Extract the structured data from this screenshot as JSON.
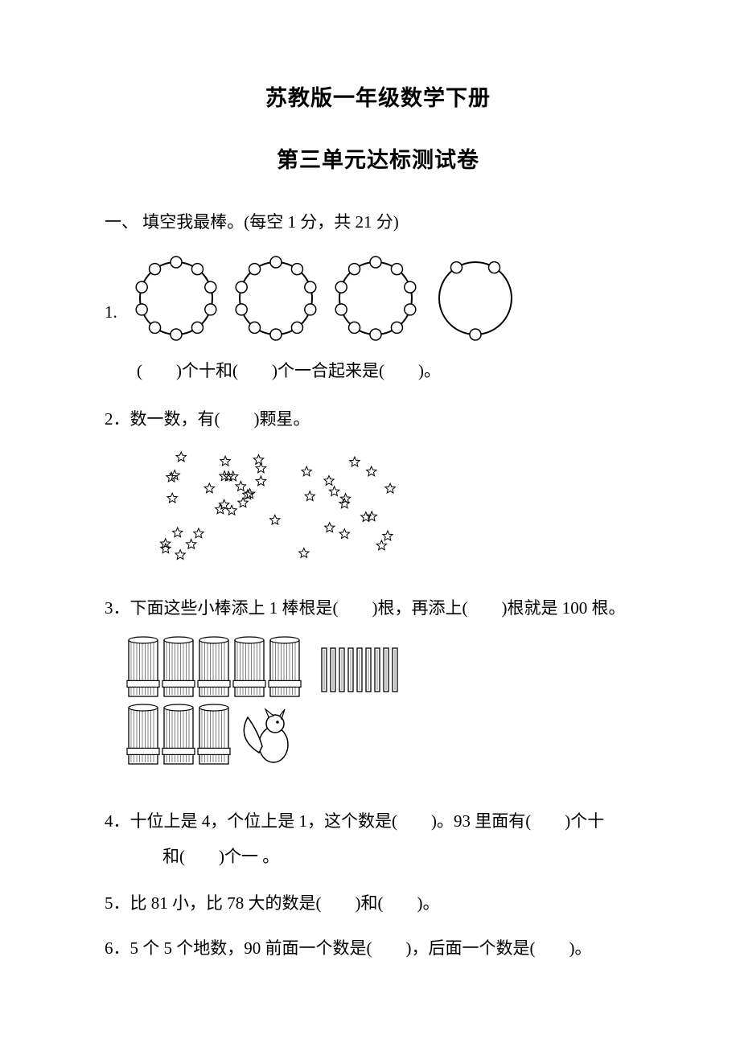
{
  "title": "苏教版一年级数学下册",
  "subtitle": "第三单元达标测试卷",
  "section1": {
    "heading": "一、 填空我最棒。(每空 1 分，共 21 分)",
    "q1": {
      "num": "1.",
      "rings": [
        {
          "beads": 10
        },
        {
          "beads": 10
        },
        {
          "beads": 10
        },
        {
          "beads": 3
        }
      ],
      "text": "(　　)个十和(　　)个一合起来是(　　)。"
    },
    "q2": {
      "text": "2．数一数，有(　　)颗星。",
      "star_count": 42
    },
    "q3": {
      "text": "3．下面这些小棒添上 1 棒根是(　　)根，再添上(　　)根就是 100 根。",
      "bundles_row1": 5,
      "loose_sticks": 9,
      "bundles_row2": 3
    },
    "q4": {
      "line1": "4．十位上是 4，个位上是 1，这个数是(　　)。93 里面有(　　)个十",
      "line2": "和(　　)个一 。"
    },
    "q5": "5．比 81 小，比 78 大的数是(　　)和(　　)。",
    "q6": "6．5 个 5 个地数，90 前面一个数是(　　)，后面一个数是(　　)。"
  },
  "style": {
    "text_color": "#000000",
    "bg_color": "#ffffff",
    "title_fontsize": 27,
    "body_fontsize": 21,
    "ring_radius": 45,
    "bead_radius": 7,
    "bundle_w": 36,
    "bundle_h": 70,
    "stick_w": 6,
    "stick_h": 54
  }
}
